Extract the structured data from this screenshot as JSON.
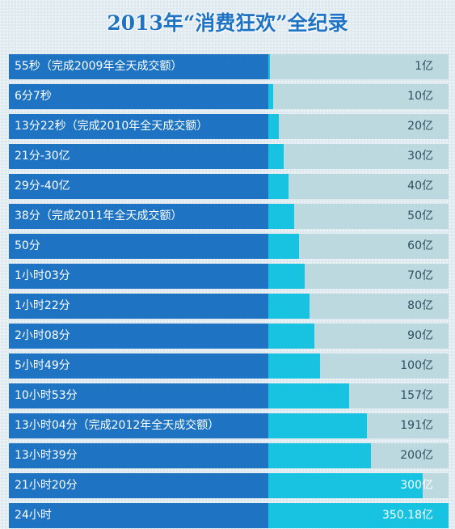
{
  "chart_data": {
    "type": "bar",
    "title": "2013年“消费狂欢”全纪录",
    "orientation": "horizontal",
    "ylim": [
      0,
      350.18
    ],
    "colors": {
      "label_block": "#1e74c2",
      "bar": "#17c3e0",
      "track": "#bcd9df",
      "title": "#1f73c4"
    },
    "categories": [
      "55秒（完成2009年全天成交额）",
      "6分7秒",
      "13分22秒（完成2010年全天成交额）",
      "21分-30亿",
      "29分-40亿",
      "38分（完成2011年全天成交额）",
      "50分",
      "1小时03分",
      "1小时22分",
      "2小时08分",
      "5小时49分",
      "10小时53分",
      "13小时04分（完成2012年全天成交额）",
      "13小时39分",
      "21小时20分",
      "24小时"
    ],
    "values": [
      1,
      10,
      20,
      30,
      40,
      50,
      60,
      70,
      80,
      90,
      100,
      157,
      191,
      200,
      300,
      350.18
    ],
    "value_labels": [
      "1亿",
      "10亿",
      "20亿",
      "30亿",
      "40亿",
      "50亿",
      "60亿",
      "70亿",
      "80亿",
      "90亿",
      "100亿",
      "157亿",
      "191亿",
      "200亿",
      "300亿",
      "350.18亿"
    ]
  }
}
